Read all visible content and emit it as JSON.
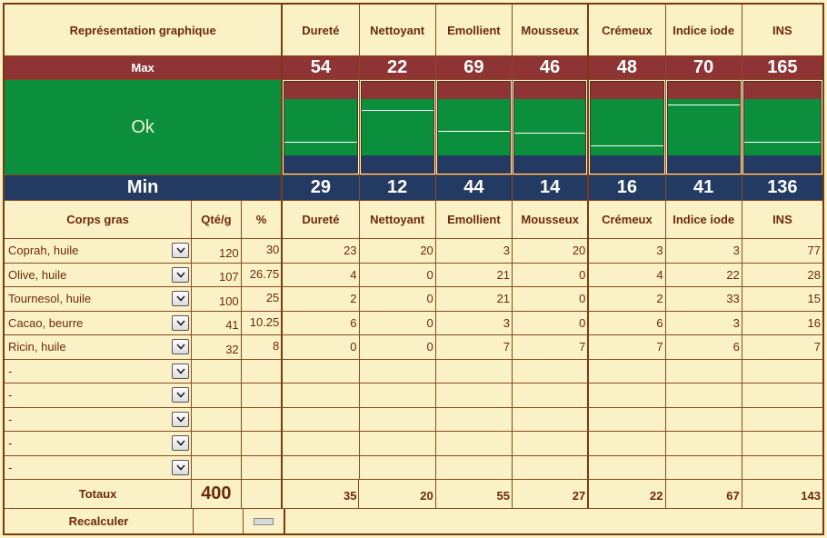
{
  "header": {
    "representation_label": "Représentation graphique",
    "properties": [
      "Dureté",
      "Nettoyant",
      "Emollient",
      "Mousseux",
      "Crémeux",
      "Indice iode",
      "INS"
    ]
  },
  "max": {
    "label": "Max",
    "values": [
      "54",
      "22",
      "69",
      "46",
      "48",
      "70",
      "165"
    ]
  },
  "status": {
    "label": "Ok",
    "color": "#0b8f3d"
  },
  "min": {
    "label": "Min",
    "values": [
      "29",
      "12",
      "44",
      "14",
      "16",
      "41",
      "136"
    ]
  },
  "bars": [
    {
      "property": "Dureté",
      "min": 29,
      "max": 54,
      "value": 35
    },
    {
      "property": "Nettoyant",
      "min": 12,
      "max": 22,
      "value": 20
    },
    {
      "property": "Emollient",
      "min": 44,
      "max": 69,
      "value": 55
    },
    {
      "property": "Mousseux",
      "min": 14,
      "max": 46,
      "value": 27
    },
    {
      "property": "Crémeux",
      "min": 16,
      "max": 48,
      "value": 22
    },
    {
      "property": "Indice iode",
      "min": 41,
      "max": 70,
      "value": 67
    },
    {
      "property": "INS",
      "min": 136,
      "max": 165,
      "value": 143
    }
  ],
  "ingredients_header": {
    "name": "Corps gras",
    "qty": "Qté/g",
    "pct": "%"
  },
  "ingredients": [
    {
      "name": "Coprah, huile",
      "qty": "120",
      "pct": "30",
      "values": [
        "23",
        "20",
        "3",
        "20",
        "3",
        "3",
        "77"
      ]
    },
    {
      "name": "Olive, huile",
      "qty": "107",
      "pct": "26.75",
      "values": [
        "4",
        "0",
        "21",
        "0",
        "4",
        "22",
        "28"
      ]
    },
    {
      "name": "Tournesol, huile",
      "qty": "100",
      "pct": "25",
      "values": [
        "2",
        "0",
        "21",
        "0",
        "2",
        "33",
        "15"
      ]
    },
    {
      "name": "Cacao, beurre",
      "qty": "41",
      "pct": "10.25",
      "values": [
        "6",
        "0",
        "3",
        "0",
        "6",
        "3",
        "16"
      ]
    },
    {
      "name": "Ricin, huile",
      "qty": "32",
      "pct": "8",
      "values": [
        "0",
        "0",
        "7",
        "7",
        "7",
        "6",
        "7"
      ]
    },
    {
      "name": "-",
      "qty": "",
      "pct": "",
      "values": [
        "",
        "",
        "",
        "",
        "",
        "",
        ""
      ]
    },
    {
      "name": "-",
      "qty": "",
      "pct": "",
      "values": [
        "",
        "",
        "",
        "",
        "",
        "",
        ""
      ]
    },
    {
      "name": "-",
      "qty": "",
      "pct": "",
      "values": [
        "",
        "",
        "",
        "",
        "",
        "",
        ""
      ]
    },
    {
      "name": "-",
      "qty": "",
      "pct": "",
      "values": [
        "",
        "",
        "",
        "",
        "",
        "",
        ""
      ]
    },
    {
      "name": "-",
      "qty": "",
      "pct": "",
      "values": [
        "",
        "",
        "",
        "",
        "",
        "",
        ""
      ]
    }
  ],
  "totals": {
    "label": "Totaux",
    "qty": "400",
    "values": [
      "35",
      "20",
      "55",
      "27",
      "22",
      "67",
      "143"
    ]
  },
  "recalc": {
    "label": "Recalculer"
  },
  "colors": {
    "max": "#8e3434",
    "min": "#233b63",
    "ok": "#0b8f3d",
    "background": "#fbf1c6",
    "text": "#6b2a0f"
  }
}
